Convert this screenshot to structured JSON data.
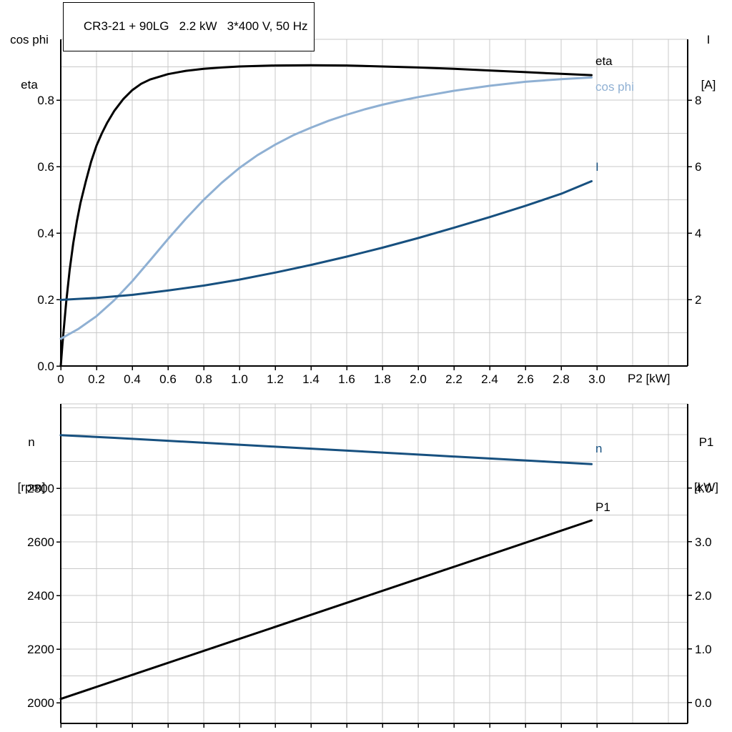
{
  "colors": {
    "background": "#ffffff",
    "grid": "#c9c9c9",
    "axis": "#000000",
    "eta_black": "#000000",
    "cos_phi_blue": "#8fb0d3",
    "current_blue": "#17507f"
  },
  "chart_data": [
    {
      "type": "line",
      "id": "top-chart",
      "title": "CR3-21 + 90LG   2.2 kW   3*400 V, 50 Hz",
      "xlabel": "P2 [kW]",
      "left_axis_title": [
        "cos phi",
        "eta"
      ],
      "right_axis_title": [
        "I",
        "[A]"
      ],
      "xlim": [
        0,
        3.508
      ],
      "x_ticks": [
        0,
        0.2,
        0.4,
        0.6,
        0.8,
        1.0,
        1.2,
        1.4,
        1.6,
        1.8,
        2.0,
        2.2,
        2.4,
        2.6,
        2.8,
        3.0
      ],
      "x_tick_labels": [
        "0",
        "0.2",
        "0.4",
        "0.6",
        "0.8",
        "1.0",
        "1.2",
        "1.4",
        "1.6",
        "1.8",
        "2.0",
        "2.2",
        "2.4",
        "2.6",
        "2.8",
        "3.0"
      ],
      "left_ylim": [
        0,
        0.9828
      ],
      "left_ticks": [
        0,
        0.2,
        0.4,
        0.6,
        0.8
      ],
      "left_tick_labels": [
        "0.0",
        "0.2",
        "0.4",
        "0.6",
        "0.8"
      ],
      "right_ylim": [
        0,
        9.828
      ],
      "right_ticks": [
        2,
        4,
        6,
        8
      ],
      "right_tick_labels": [
        "2",
        "4",
        "6",
        "8"
      ],
      "grid": {
        "x_step": 0.2,
        "y_step": 0.1
      },
      "series": [
        {
          "name": "eta",
          "label": "eta",
          "axis": "left",
          "color": "#000000",
          "points": [
            [
              0,
              0
            ],
            [
              0.01,
              0.07
            ],
            [
              0.02,
              0.13
            ],
            [
              0.03,
              0.19
            ],
            [
              0.05,
              0.29
            ],
            [
              0.07,
              0.37
            ],
            [
              0.09,
              0.435
            ],
            [
              0.11,
              0.49
            ],
            [
              0.14,
              0.555
            ],
            [
              0.17,
              0.615
            ],
            [
              0.2,
              0.663
            ],
            [
              0.23,
              0.7
            ],
            [
              0.26,
              0.732
            ],
            [
              0.3,
              0.768
            ],
            [
              0.35,
              0.803
            ],
            [
              0.4,
              0.83
            ],
            [
              0.45,
              0.849
            ],
            [
              0.5,
              0.862
            ],
            [
              0.6,
              0.878
            ],
            [
              0.7,
              0.888
            ],
            [
              0.8,
              0.894
            ],
            [
              0.9,
              0.898
            ],
            [
              1.0,
              0.901
            ],
            [
              1.2,
              0.904
            ],
            [
              1.4,
              0.905
            ],
            [
              1.6,
              0.904
            ],
            [
              1.8,
              0.901
            ],
            [
              2.0,
              0.898
            ],
            [
              2.2,
              0.894
            ],
            [
              2.4,
              0.889
            ],
            [
              2.6,
              0.884
            ],
            [
              2.8,
              0.879
            ],
            [
              2.97,
              0.875
            ]
          ]
        },
        {
          "name": "cos-phi",
          "label": "cos phi",
          "axis": "left",
          "color": "#8fb0d3",
          "points": [
            [
              0,
              0.082
            ],
            [
              0.1,
              0.112
            ],
            [
              0.2,
              0.15
            ],
            [
              0.3,
              0.198
            ],
            [
              0.4,
              0.255
            ],
            [
              0.5,
              0.318
            ],
            [
              0.6,
              0.382
            ],
            [
              0.7,
              0.443
            ],
            [
              0.8,
              0.5
            ],
            [
              0.9,
              0.551
            ],
            [
              1.0,
              0.596
            ],
            [
              1.1,
              0.634
            ],
            [
              1.2,
              0.666
            ],
            [
              1.3,
              0.694
            ],
            [
              1.4,
              0.717
            ],
            [
              1.5,
              0.738
            ],
            [
              1.6,
              0.756
            ],
            [
              1.7,
              0.772
            ],
            [
              1.8,
              0.786
            ],
            [
              1.9,
              0.798
            ],
            [
              2.0,
              0.809
            ],
            [
              2.2,
              0.828
            ],
            [
              2.4,
              0.843
            ],
            [
              2.6,
              0.855
            ],
            [
              2.8,
              0.863
            ],
            [
              2.97,
              0.868
            ]
          ]
        },
        {
          "name": "current",
          "label": "I",
          "axis": "right",
          "color": "#17507f",
          "points": [
            [
              0,
              1.99
            ],
            [
              0.2,
              2.05
            ],
            [
              0.4,
              2.14
            ],
            [
              0.6,
              2.27
            ],
            [
              0.8,
              2.42
            ],
            [
              1.0,
              2.6
            ],
            [
              1.2,
              2.81
            ],
            [
              1.4,
              3.04
            ],
            [
              1.6,
              3.29
            ],
            [
              1.8,
              3.56
            ],
            [
              2.0,
              3.85
            ],
            [
              2.2,
              4.16
            ],
            [
              2.4,
              4.48
            ],
            [
              2.6,
              4.82
            ],
            [
              2.8,
              5.18
            ],
            [
              2.97,
              5.56
            ]
          ]
        }
      ]
    },
    {
      "type": "line",
      "id": "bottom-chart",
      "title": "",
      "xlabel": "",
      "left_axis_title": [
        "n",
        "[rpm]"
      ],
      "right_axis_title": [
        "P1",
        "[kW]"
      ],
      "xlim": [
        0,
        3.508
      ],
      "x_ticks": [
        0,
        0.2,
        0.4,
        0.6,
        0.8,
        1.0,
        1.2,
        1.4,
        1.6,
        1.8,
        2.0,
        2.2,
        2.4,
        2.6,
        2.8,
        3.0
      ],
      "x_tick_labels": [],
      "left_ylim": [
        1922.7,
        3114.7
      ],
      "left_ticks": [
        2000,
        2200,
        2400,
        2600,
        2800
      ],
      "left_tick_labels": [
        "2000",
        "2200",
        "2400",
        "2600",
        "2800"
      ],
      "right_ylim": [
        -0.387,
        5.573
      ],
      "right_ticks": [
        0,
        1,
        2,
        3,
        4
      ],
      "right_tick_labels": [
        "0.0",
        "1.0",
        "2.0",
        "3.0",
        "4.0"
      ],
      "grid": {
        "x_step": 0.2,
        "y_step": 100
      },
      "series": [
        {
          "name": "speed",
          "label": "n",
          "axis": "left",
          "color": "#17507f",
          "points": [
            [
              0,
              2998
            ],
            [
              0.3,
              2988
            ],
            [
              0.6,
              2977
            ],
            [
              0.9,
              2966
            ],
            [
              1.2,
              2955
            ],
            [
              1.5,
              2944
            ],
            [
              1.8,
              2933
            ],
            [
              2.1,
              2922
            ],
            [
              2.4,
              2911
            ],
            [
              2.7,
              2900
            ],
            [
              2.97,
              2890
            ]
          ]
        },
        {
          "name": "power-p1",
          "label": "P1",
          "axis": "right",
          "color": "#000000",
          "points": [
            [
              0,
              0.07
            ],
            [
              0.5,
              0.63
            ],
            [
              1.0,
              1.19
            ],
            [
              1.5,
              1.75
            ],
            [
              2.0,
              2.31
            ],
            [
              2.5,
              2.87
            ],
            [
              2.97,
              3.4
            ]
          ]
        }
      ]
    }
  ]
}
